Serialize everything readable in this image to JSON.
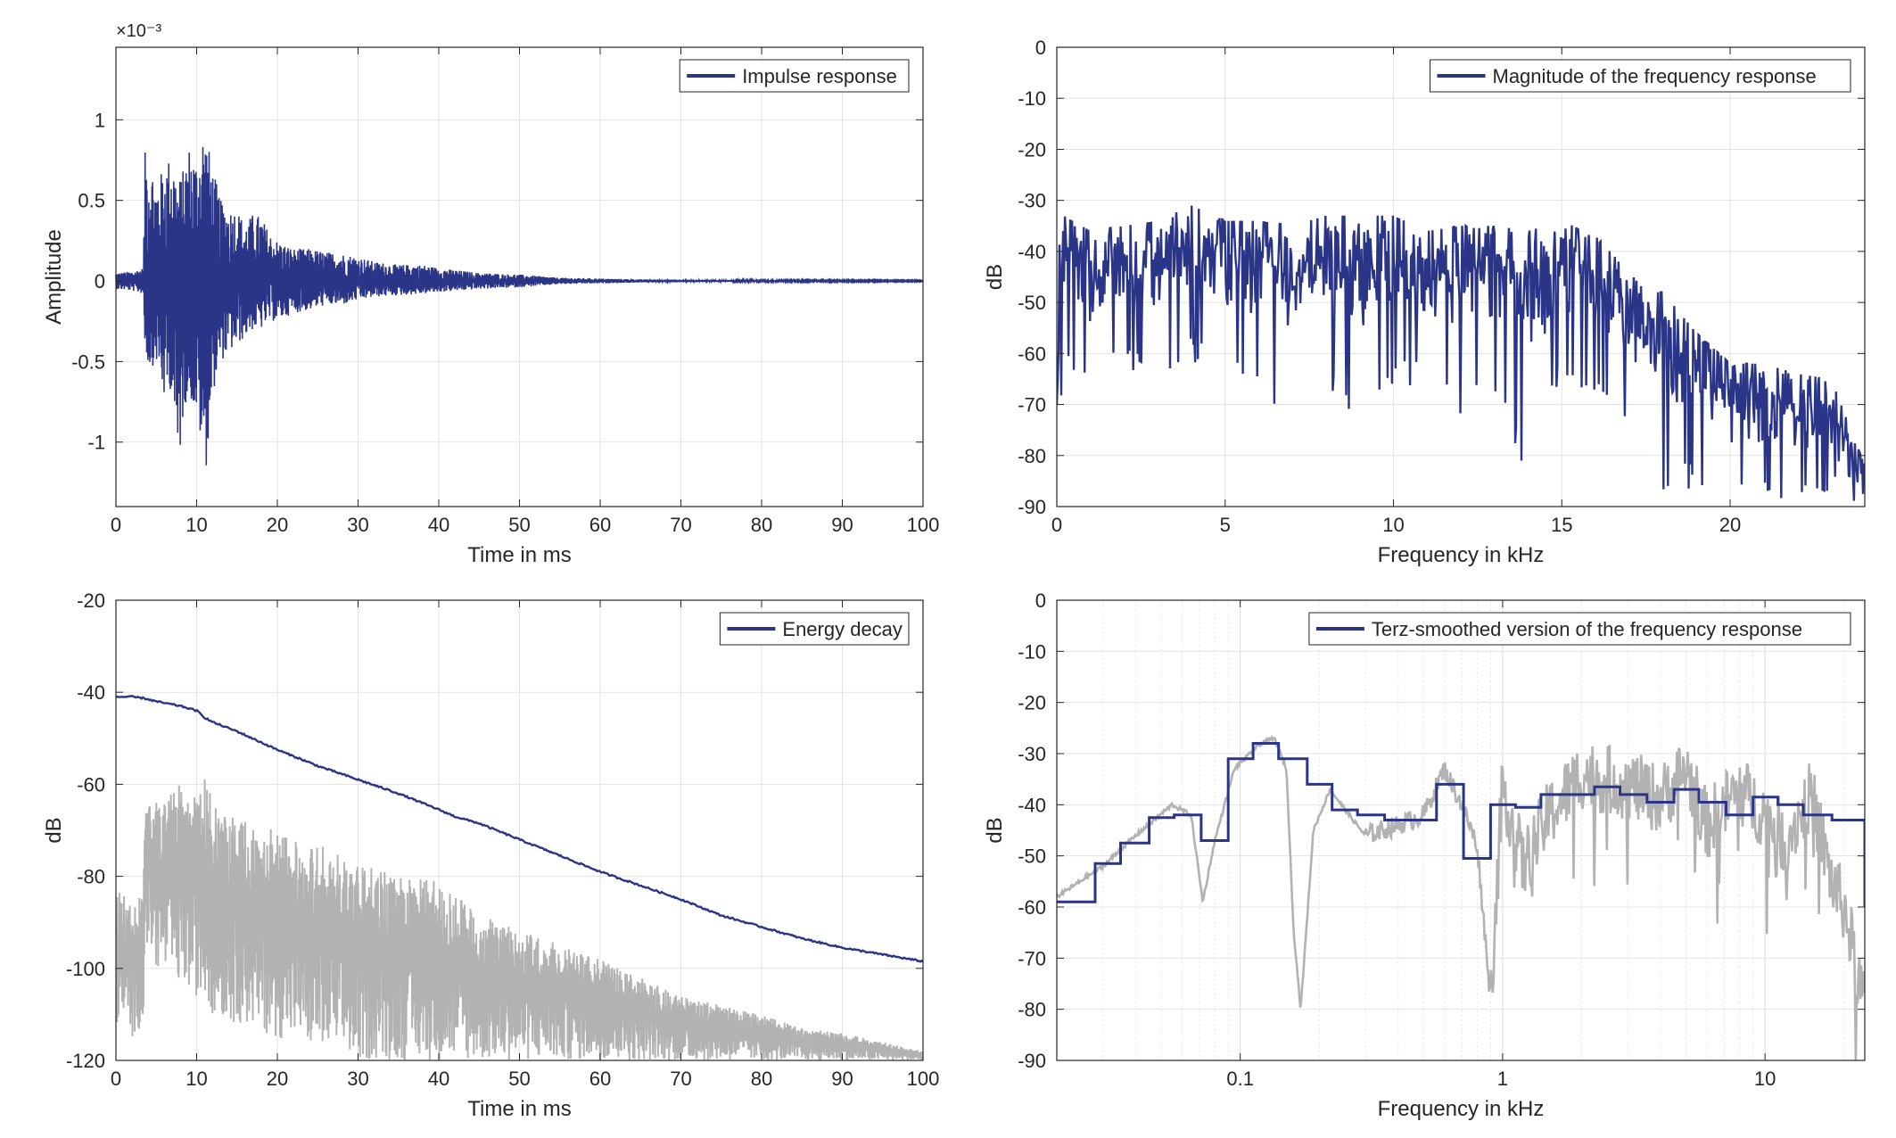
{
  "colors": {
    "series": "#2b3587",
    "gray": "#b2b2b2",
    "grid": "#e3e3e3",
    "axis": "#262626"
  },
  "chart_data": [
    {
      "id": "impulse",
      "type": "line",
      "xlabel": "Time in ms",
      "ylabel": "Amplitude",
      "exponent_label": "×10⁻³",
      "xlim": [
        0,
        100
      ],
      "ylim": [
        -1.4,
        1.45
      ],
      "xticks": [
        0,
        10,
        20,
        30,
        40,
        50,
        60,
        70,
        80,
        90,
        100
      ],
      "yticks": [
        -1,
        -0.5,
        0,
        0.5,
        1
      ],
      "ytick_labels": [
        "-1",
        "-0.5",
        "0",
        "0.5",
        "1"
      ],
      "grid": true,
      "legend": {
        "position": "top-right",
        "entries": [
          "Impulse response"
        ]
      },
      "series": [
        {
          "name": "Impulse response",
          "x": [
            0,
            2,
            3.4,
            3.6,
            4.2,
            5,
            6,
            7,
            7.6,
            8.4,
            9,
            10,
            10.8,
            11.2,
            12,
            13,
            14,
            15,
            16,
            17,
            18,
            19,
            20,
            22,
            24,
            26,
            28,
            30,
            32,
            35,
            38,
            40,
            45,
            50,
            55,
            60,
            65,
            70,
            80,
            90,
            100
          ],
          "envelope": [
            0.05,
            0.06,
            0.08,
            0.8,
            0.78,
            0.6,
            0.72,
            0.8,
            0.6,
            0.7,
            0.85,
            0.75,
            0.95,
            0.9,
            0.7,
            0.5,
            0.45,
            0.45,
            0.35,
            0.42,
            0.4,
            0.3,
            0.25,
            0.2,
            0.2,
            0.18,
            0.17,
            0.15,
            0.12,
            0.1,
            0.1,
            0.08,
            0.05,
            0.04,
            0.02,
            0.015,
            0.01,
            0.008,
            0.005,
            0.004,
            0.003
          ],
          "negative_envelope": [
            0.05,
            0.06,
            0.08,
            0.45,
            0.55,
            0.5,
            0.75,
            0.65,
            1.28,
            0.8,
            0.7,
            0.85,
            1.1,
            1.15,
            0.7,
            0.5,
            0.45,
            0.4,
            0.35,
            0.3,
            0.3,
            0.25,
            0.25,
            0.2,
            0.18,
            0.15,
            0.15,
            0.12,
            0.1,
            0.09,
            0.08,
            0.07,
            0.05,
            0.04,
            0.02,
            0.015,
            0.01,
            0.008,
            0.005,
            0.004,
            0.003
          ]
        }
      ]
    },
    {
      "id": "magnitude",
      "type": "line",
      "xlabel": "Frequency in kHz",
      "ylabel": "dB",
      "xlim": [
        0,
        24
      ],
      "ylim": [
        -90,
        0
      ],
      "xticks": [
        0,
        5,
        10,
        15,
        20
      ],
      "yticks": [
        0,
        -10,
        -20,
        -30,
        -40,
        -50,
        -60,
        -70,
        -80,
        -90
      ],
      "grid": true,
      "legend": {
        "position": "top-right",
        "entries": [
          "Magnitude of the frequency response"
        ]
      },
      "series": [
        {
          "name": "Magnitude of the frequency response",
          "x": [
            0,
            0.1,
            0.2,
            1,
            2,
            3,
            4,
            5,
            6,
            7,
            8,
            9,
            10,
            11,
            12,
            13,
            14,
            15,
            16,
            17,
            17.5,
            18,
            19,
            20,
            21,
            22,
            23,
            24
          ],
          "upper": [
            -70,
            -27,
            -33,
            -36,
            -35,
            -34,
            -31,
            -34,
            -34,
            -35,
            -33,
            -33,
            -33,
            -36,
            -35,
            -35,
            -36,
            -34,
            -37,
            -44,
            -48,
            -48,
            -56,
            -62,
            -62,
            -64,
            -65,
            -82
          ],
          "lower": [
            -72,
            -80,
            -62,
            -70,
            -62,
            -68,
            -62,
            -66,
            -70,
            -74,
            -66,
            -78,
            -66,
            -68,
            -72,
            -68,
            -86,
            -66,
            -70,
            -75,
            -78,
            -88,
            -86,
            -90,
            -90,
            -90,
            -90,
            -90
          ]
        }
      ]
    },
    {
      "id": "energy",
      "type": "line",
      "xlabel": "Time in ms",
      "ylabel": "dB",
      "xlim": [
        0,
        100
      ],
      "ylim": [
        -120,
        -20
      ],
      "xticks": [
        0,
        10,
        20,
        30,
        40,
        50,
        60,
        70,
        80,
        90,
        100
      ],
      "yticks": [
        -20,
        -40,
        -60,
        -80,
        -100,
        -120
      ],
      "grid": true,
      "legend": {
        "position": "top-right",
        "entries": [
          "Energy decay"
        ]
      },
      "series": [
        {
          "name": "Energy decay",
          "x": [
            0,
            2,
            3.5,
            5,
            8,
            10,
            11,
            12,
            15,
            20,
            25,
            30,
            35,
            40,
            42,
            45,
            50,
            55,
            60,
            65,
            70,
            75,
            80,
            85,
            90,
            95,
            100
          ],
          "y": [
            -41,
            -41,
            -41.3,
            -42,
            -43,
            -44,
            -45.5,
            -46.5,
            -48.5,
            -52.5,
            -56,
            -59,
            -62,
            -65.5,
            -67,
            -68.5,
            -72,
            -75.5,
            -79,
            -82,
            -85,
            -88.5,
            -91,
            -93.5,
            -95.5,
            -97,
            -98.5
          ]
        },
        {
          "x": [
            0,
            2,
            3.4,
            3.6,
            5,
            8,
            10,
            11,
            12,
            15,
            20,
            25,
            30,
            35,
            40,
            45,
            50,
            55,
            60,
            65,
            70,
            75,
            80,
            85,
            90,
            95,
            100
          ],
          "upper": [
            -83,
            -84,
            -84,
            -63,
            -64,
            -60,
            -62,
            -58,
            -64,
            -67,
            -70,
            -73,
            -77,
            -80,
            -81,
            -88,
            -92,
            -94,
            -98,
            -102,
            -106,
            -108,
            -110,
            -113,
            -114,
            -116,
            -118
          ],
          "lower": [
            -112,
            -115,
            -112,
            -94,
            -100,
            -104,
            -106,
            -108,
            -110,
            -112,
            -115,
            -118,
            -120,
            -120,
            -120,
            -120,
            -120,
            -120,
            -120,
            -120,
            -120,
            -120,
            -120,
            -120,
            -120,
            -120,
            -120
          ]
        }
      ]
    },
    {
      "id": "terz",
      "type": "line",
      "xlabel": "Frequency in kHz",
      "ylabel": "dB",
      "xscale": "log",
      "xlim": [
        0.02,
        24
      ],
      "ylim": [
        -90,
        0
      ],
      "xticks": [
        0.1,
        1,
        10
      ],
      "xtick_labels": [
        "0.1",
        "1",
        "10"
      ],
      "yticks": [
        0,
        -10,
        -20,
        -30,
        -40,
        -50,
        -60,
        -70,
        -80,
        -90
      ],
      "grid": true,
      "legend": {
        "position": "top-right",
        "entries": [
          "Terz-smoothed version of the frequency response"
        ]
      },
      "series": [
        {
          "name": "Terz-smoothed version of the frequency response",
          "step_edges": [
            0.02,
            0.028,
            0.035,
            0.045,
            0.056,
            0.071,
            0.09,
            0.112,
            0.14,
            0.18,
            0.224,
            0.28,
            0.355,
            0.45,
            0.56,
            0.71,
            0.9,
            1.12,
            1.4,
            1.8,
            2.24,
            2.8,
            3.55,
            4.5,
            5.6,
            7.1,
            9,
            11.2,
            14,
            18,
            24
          ],
          "step_values": [
            -59,
            -51.5,
            -47.5,
            -42.5,
            -42,
            -47,
            -31,
            -28,
            -31,
            -36,
            -41,
            -42,
            -43,
            -43,
            -36,
            -50.5,
            -40,
            -40.5,
            -38,
            -38,
            -36.5,
            -38,
            -39.5,
            -37,
            -39.5,
            -42,
            -38.5,
            -40,
            -42,
            -43,
            -60
          ]
        },
        {
          "x": [
            0.02,
            0.03,
            0.04,
            0.055,
            0.065,
            0.072,
            0.08,
            0.095,
            0.12,
            0.135,
            0.15,
            0.16,
            0.17,
            0.19,
            0.22,
            0.26,
            0.3,
            0.4,
            0.5,
            0.6,
            0.7,
            0.8,
            0.9,
            1.0,
            1.2,
            1.5,
            2,
            3,
            4,
            5,
            6,
            8,
            10,
            12,
            15,
            18,
            20,
            22,
            24
          ],
          "y": [
            -58,
            -52,
            -46,
            -40,
            -42,
            -59,
            -47,
            -33,
            -28,
            -27,
            -33,
            -65,
            -80,
            -45,
            -37,
            -42,
            -46,
            -44,
            -42,
            -33,
            -40,
            -48,
            -78,
            -36,
            -52,
            -42,
            -34,
            -36,
            -39,
            -33,
            -44,
            -37,
            -42,
            -47,
            -38,
            -55,
            -60,
            -70,
            -80
          ]
        }
      ]
    }
  ]
}
